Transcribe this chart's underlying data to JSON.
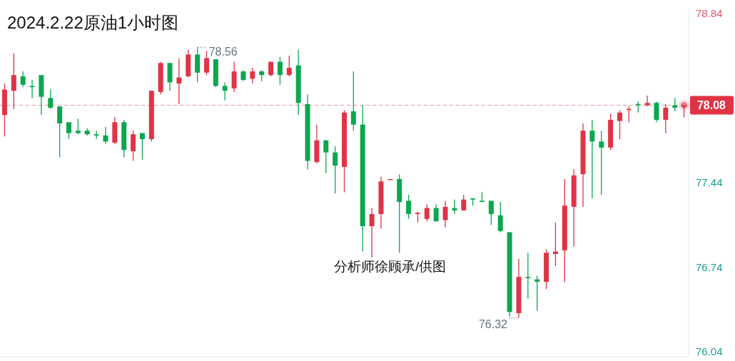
{
  "chart_data": {
    "type": "candlestick",
    "title": "2024.2.22原油1小时图",
    "categories": [
      null,
      null,
      null,
      null,
      null,
      null,
      null,
      null,
      null,
      null,
      null,
      null,
      null,
      null,
      null,
      null,
      null,
      null,
      null,
      null,
      null,
      null,
      null,
      null,
      null,
      null,
      null,
      null,
      null,
      null,
      null,
      null,
      null,
      null,
      null,
      null,
      null,
      null,
      null,
      null,
      null,
      null,
      null,
      null,
      null,
      null,
      null,
      null,
      null,
      null,
      null,
      null,
      null,
      null,
      null,
      null,
      null,
      null,
      null,
      null,
      null,
      null,
      null,
      null,
      null,
      null,
      null,
      null,
      null,
      null,
      null,
      null,
      null,
      null,
      null
    ],
    "ohlc": [
      [
        78.0,
        78.26,
        77.82,
        78.21
      ],
      [
        78.2,
        78.51,
        78.05,
        78.33
      ],
      [
        78.32,
        78.36,
        78.23,
        78.25
      ],
      [
        78.24,
        78.29,
        78.14,
        78.23
      ],
      [
        78.33,
        78.33,
        78.0,
        78.15
      ],
      [
        78.14,
        78.21,
        78.05,
        78.06
      ],
      [
        78.07,
        78.07,
        77.65,
        77.93
      ],
      [
        77.94,
        77.94,
        77.8,
        77.85
      ],
      [
        77.87,
        77.97,
        77.84,
        77.85
      ],
      [
        77.87,
        77.89,
        77.83,
        77.84
      ],
      [
        77.84,
        77.87,
        77.8,
        77.83
      ],
      [
        77.83,
        77.9,
        77.76,
        77.78
      ],
      [
        77.77,
        77.98,
        77.76,
        77.94
      ],
      [
        77.94,
        77.96,
        77.65,
        77.71
      ],
      [
        77.7,
        77.87,
        77.62,
        77.84
      ],
      [
        77.85,
        77.85,
        77.63,
        77.8
      ],
      [
        77.8,
        78.2,
        77.78,
        78.2
      ],
      [
        78.19,
        78.44,
        78.17,
        78.43
      ],
      [
        78.43,
        78.43,
        78.2,
        78.27
      ],
      [
        78.26,
        78.47,
        78.09,
        78.31
      ],
      [
        78.32,
        78.54,
        78.31,
        78.5
      ],
      [
        78.5,
        78.56,
        78.27,
        78.35
      ],
      [
        78.35,
        78.53,
        78.33,
        78.47
      ],
      [
        78.46,
        78.46,
        78.23,
        78.24
      ],
      [
        78.24,
        78.27,
        78.12,
        78.2
      ],
      [
        78.22,
        78.44,
        78.19,
        78.36
      ],
      [
        78.36,
        78.37,
        78.28,
        78.29
      ],
      [
        78.3,
        78.39,
        78.26,
        78.36
      ],
      [
        78.36,
        78.37,
        78.28,
        78.33
      ],
      [
        78.33,
        78.44,
        78.32,
        78.44
      ],
      [
        78.44,
        78.48,
        78.25,
        78.33
      ],
      [
        78.33,
        78.49,
        78.32,
        78.39
      ],
      [
        78.41,
        78.54,
        78.0,
        78.1
      ],
      [
        78.09,
        78.17,
        77.55,
        77.62
      ],
      [
        77.61,
        77.92,
        77.6,
        77.79
      ],
      [
        77.79,
        77.79,
        77.52,
        77.69
      ],
      [
        77.69,
        77.74,
        77.35,
        77.58
      ],
      [
        77.57,
        78.04,
        77.36,
        78.02
      ],
      [
        78.03,
        78.36,
        77.87,
        77.92
      ],
      [
        77.92,
        78.08,
        76.87,
        77.08
      ],
      [
        77.08,
        77.23,
        76.82,
        77.18
      ],
      [
        77.18,
        77.49,
        77.06,
        77.45
      ],
      [
        77.47,
        77.47,
        77.47,
        77.47
      ],
      [
        77.47,
        77.51,
        76.86,
        77.28
      ],
      [
        77.29,
        77.34,
        77.14,
        77.18
      ],
      [
        77.18,
        77.2,
        77.11,
        77.19
      ],
      [
        77.14,
        77.26,
        77.12,
        77.23
      ],
      [
        77.23,
        77.26,
        77.12,
        77.12
      ],
      [
        77.13,
        77.29,
        77.07,
        77.24
      ],
      [
        77.23,
        77.3,
        77.18,
        77.21
      ],
      [
        77.21,
        77.34,
        77.21,
        77.3
      ],
      [
        77.31,
        77.31,
        77.25,
        77.3
      ],
      [
        77.29,
        77.36,
        77.28,
        77.28
      ],
      [
        77.29,
        77.29,
        77.09,
        77.18
      ],
      [
        77.17,
        77.28,
        77.03,
        77.04
      ],
      [
        77.03,
        77.03,
        76.33,
        76.37
      ],
      [
        76.36,
        76.81,
        76.32,
        76.66
      ],
      [
        76.66,
        76.86,
        76.48,
        76.65
      ],
      [
        76.64,
        76.67,
        76.38,
        76.62
      ],
      [
        76.62,
        76.89,
        76.56,
        76.86
      ],
      [
        76.85,
        77.11,
        76.75,
        76.87
      ],
      [
        76.88,
        77.47,
        76.62,
        77.25
      ],
      [
        77.24,
        77.55,
        76.91,
        77.5
      ],
      [
        77.51,
        77.93,
        77.24,
        77.87
      ],
      [
        77.87,
        77.96,
        77.31,
        77.78
      ],
      [
        77.78,
        77.87,
        77.34,
        77.73
      ],
      [
        77.73,
        78.01,
        77.71,
        77.96
      ],
      [
        77.95,
        78.04,
        77.8,
        78.02
      ],
      [
        78.04,
        78.07,
        77.94,
        78.05
      ],
      [
        78.09,
        78.11,
        78.02,
        78.08
      ],
      [
        78.08,
        78.16,
        78.07,
        78.1
      ],
      [
        78.1,
        78.11,
        77.94,
        77.96
      ],
      [
        77.96,
        78.09,
        77.85,
        78.06
      ],
      [
        78.08,
        78.14,
        78.03,
        78.06
      ],
      [
        78.07,
        78.08,
        77.98,
        78.08
      ]
    ],
    "colors": [
      "#e03445",
      "#e03445",
      "#0ba750",
      "#0ba750",
      "#0ba750",
      "#0ba750",
      "#0ba750",
      "#0ba750",
      "#0ba750",
      "#0ba750",
      "#0ba750",
      "#0ba750",
      "#e03445",
      "#0ba750",
      "#e03445",
      "#0ba750",
      "#e03445",
      "#e03445",
      "#0ba750",
      "#e03445",
      "#e03445",
      "#0ba750",
      "#e03445",
      "#0ba750",
      "#0ba750",
      "#e03445",
      "#0ba750",
      "#e03445",
      "#0ba750",
      "#e03445",
      "#0ba750",
      "#e03445",
      "#0ba750",
      "#0ba750",
      "#e03445",
      "#0ba750",
      "#0ba750",
      "#e03445",
      "#0ba750",
      "#0ba750",
      "#e03445",
      "#e03445",
      "#e03445",
      "#0ba750",
      "#0ba750",
      "#e03445",
      "#e03445",
      "#0ba750",
      "#e03445",
      "#0ba750",
      "#e03445",
      "#0ba750",
      "#0ba750",
      "#0ba750",
      "#0ba750",
      "#0ba750",
      "#e03445",
      "#0ba750",
      "#0ba750",
      "#e03445",
      "#e03445",
      "#e03445",
      "#e03445",
      "#e03445",
      "#0ba750",
      "#0ba750",
      "#e03445",
      "#e03445",
      "#e03445",
      "#0ba750",
      "#e03445",
      "#0ba750",
      "#e03445",
      "#0ba750",
      "#e03445"
    ],
    "ylim": [
      76.0,
      78.88
    ],
    "yticks": [
      78.84,
      77.44,
      76.74,
      76.04
    ],
    "tick_labels": "y",
    "ref_lines": [
      {
        "axis": "y",
        "value": 78.08,
        "label": "78.08",
        "color": "#e03445",
        "line_style": "dashed"
      }
    ],
    "annotations": [
      "78.56",
      "76.32",
      "分析师徐顾承/供图"
    ]
  }
}
